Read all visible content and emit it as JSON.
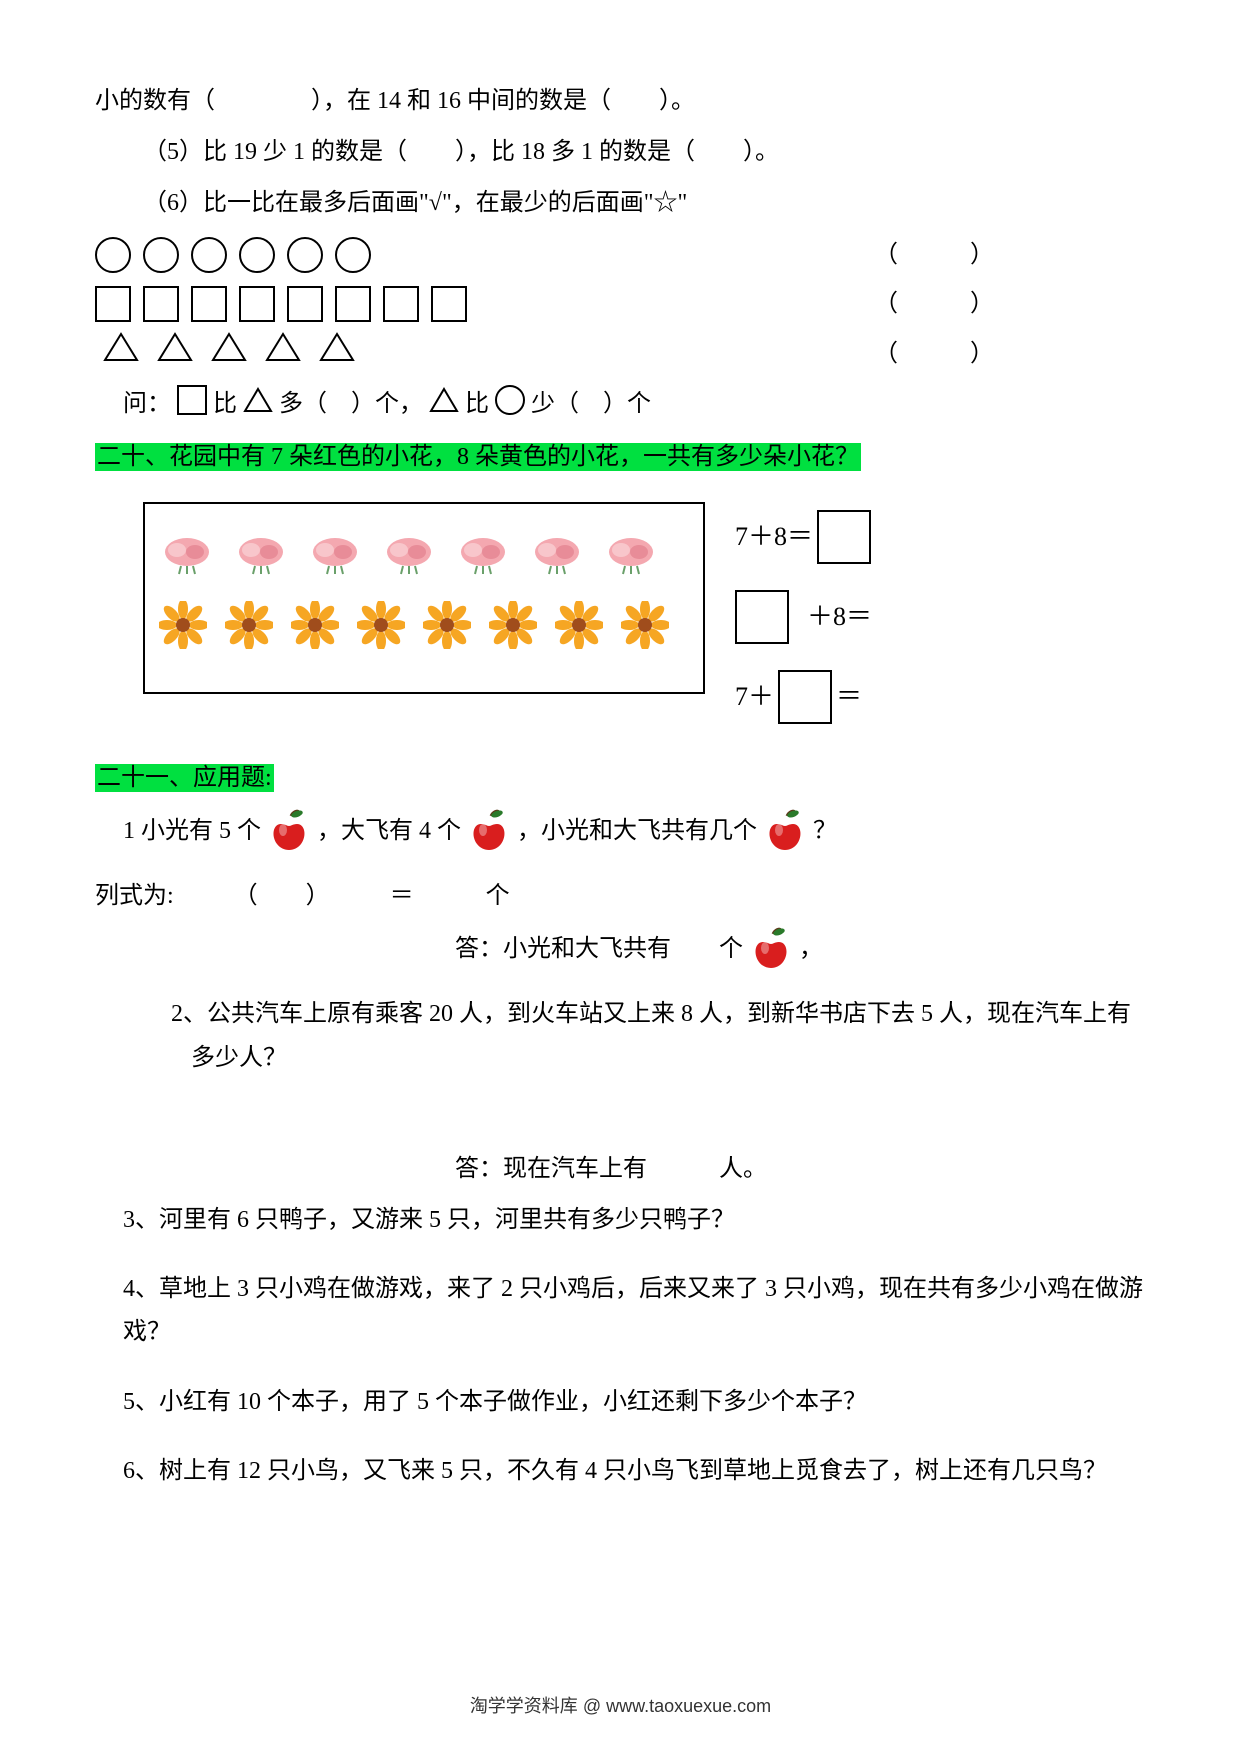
{
  "line_top": "小的数有（　　　　），在 14 和 16 中间的数是（　　）。",
  "q5": "（5）比 19 少 1 的数是（　　），比 18 多 1 的数是（　　）。",
  "q6": "（6）比一比在最多后面画\"√\"，在最少的后面画\"☆\"",
  "shapes": {
    "circles_count": 6,
    "squares_count": 8,
    "triangles_count": 5,
    "paren_left": "（",
    "paren_right": "）"
  },
  "q_compare": "问：",
  "q_compare_a": " 比 ",
  "q_compare_b": "多（　）个，",
  "q_compare_c": " 比 ",
  "q_compare_d": "少（　）个",
  "section20": "二十、花园中有 7 朵红色的小花，8 朵黄色的小花，一共有多少朵小花？",
  "flowers": {
    "red_count": 7,
    "yellow_count": 8,
    "red_color": "#f4a8b0",
    "yellow_petal": "#f6a623",
    "yellow_center": "#a04d1c"
  },
  "eqs": {
    "e1_left": "7＋8＝",
    "e2_right": "＋8＝",
    "e3_left": "7＋",
    "e3_right": "＝"
  },
  "section21": "二十一、应用题:",
  "p1_a": "1 小光有 5 个",
  "p1_b": "，大飞有 4 个",
  "p1_c": "，小光和大飞共有几个",
  "p1_d": "？",
  "p1_form": "列式为:　　　（　　）　　　＝　　　个",
  "p1_ans_a": "答：小光和大飞共有　　个",
  "p1_ans_b": "，",
  "p2": "2、公共汽车上原有乘客 20 人，到火车站又上来 8 人，到新华书店下去 5 人，现在汽车上有多少人？",
  "p2_ans": "答：现在汽车上有　　　人。",
  "p3": "3、河里有 6 只鸭子，又游来 5 只，河里共有多少只鸭子？",
  "p4": "4、草地上 3 只小鸡在做游戏，来了 2 只小鸡后，后来又来了 3 只小鸡，现在共有多少小鸡在做游戏？",
  "p5": "5、小红有 10 个本子，用了 5 个本子做作业，小红还剩下多少个本子？",
  "p6": "6、树上有 12 只小鸟，又飞来 5 只，不久有 4 只小鸟飞到草地上觅食去了，树上还有几只鸟？",
  "footer": "淘学学资料库 @ www.taoxuexue.com",
  "apple_color": "#d91e1e",
  "apple_leaf": "#2a7a2a"
}
